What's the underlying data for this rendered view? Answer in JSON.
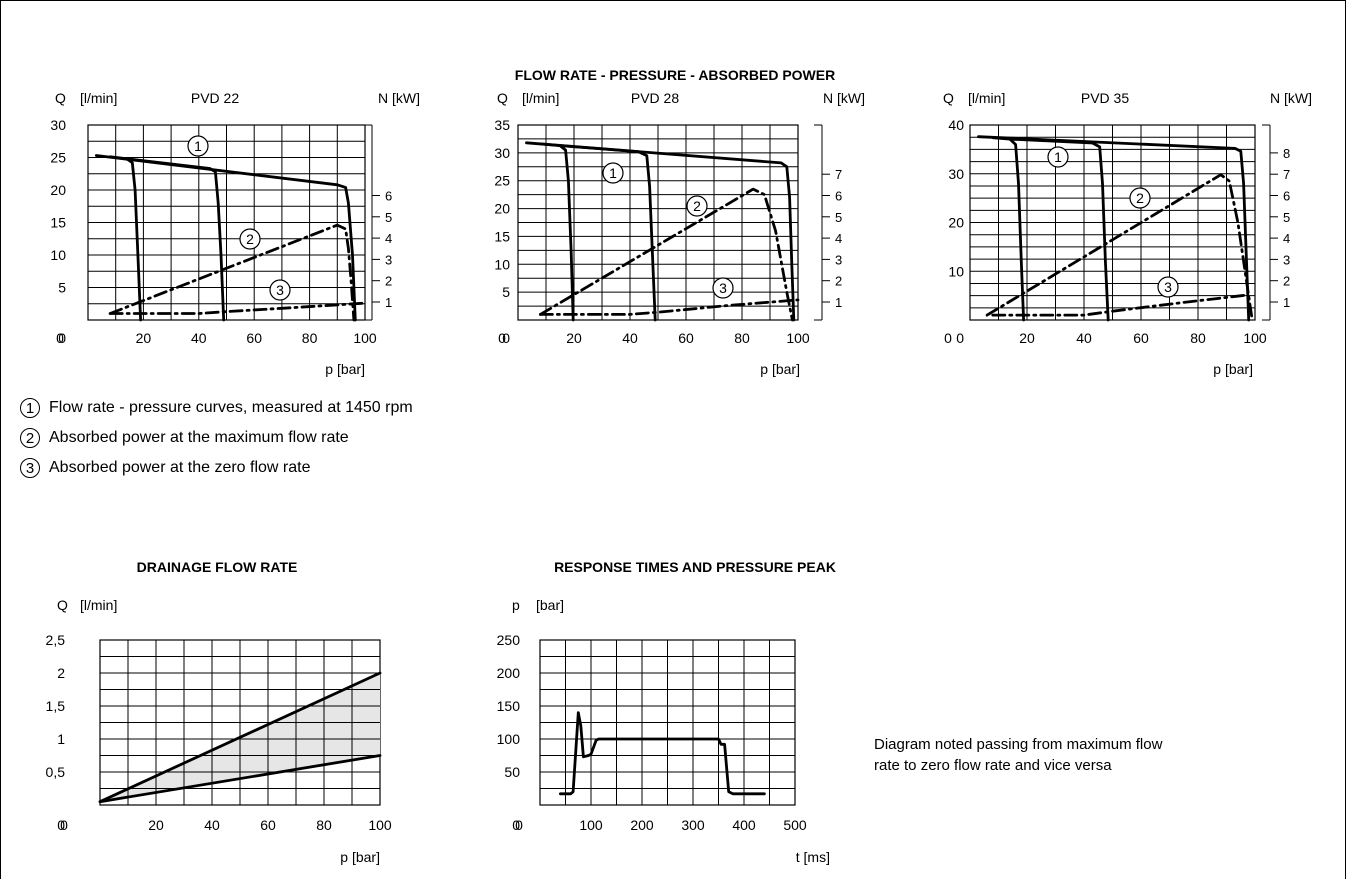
{
  "page_title": "FLOW RATE - PRESSURE - ABSORBED POWER",
  "legend": [
    {
      "marker": "1",
      "text": "Flow rate - pressure curves, measured at 1450 rpm"
    },
    {
      "marker": "2",
      "text": "Absorbed power at the maximum flow rate"
    },
    {
      "marker": "3",
      "text": "Absorbed power at the zero flow rate"
    }
  ],
  "note": "Diagram noted passing from maximum flow rate to zero flow rate and vice versa",
  "chart_data": [
    {
      "type": "line",
      "title": "PVD 22",
      "ylabel_left": "Q",
      "ylabel_left_unit": "[l/min]",
      "ylabel_right": "N [kW]",
      "xlabel": "p [bar]",
      "xlim": [
        0,
        100
      ],
      "ylim": [
        0,
        30
      ],
      "x_ticks": [
        "0",
        "20",
        "40",
        "60",
        "80",
        "100"
      ],
      "y_ticks": [
        "0",
        "5",
        "10",
        "15",
        "20",
        "25",
        "30"
      ],
      "right_axis_ticks": [
        1,
        2,
        3,
        4,
        5,
        6
      ],
      "grid": true,
      "series": [
        {
          "marker": "1",
          "style": "solid",
          "points": [
            [
              3,
              25.3
            ],
            [
              90,
              20.8
            ],
            [
              93,
              20.4
            ],
            [
              94,
              18
            ],
            [
              95.5,
              10
            ],
            [
              96.5,
              0
            ]
          ]
        },
        {
          "marker": "1",
          "style": "solid",
          "points": [
            [
              8,
              25.1
            ],
            [
              14,
              24.8
            ],
            [
              16,
              24.2
            ],
            [
              17,
              20
            ],
            [
              18,
              10
            ],
            [
              19,
              0
            ]
          ]
        },
        {
          "marker": "1",
          "style": "solid",
          "points": [
            [
              14,
              24.8
            ],
            [
              44,
              23.3
            ],
            [
              46,
              22.8
            ],
            [
              47,
              18
            ],
            [
              48,
              10
            ],
            [
              49,
              0
            ]
          ]
        },
        {
          "marker": "2",
          "style": "dashdot",
          "points": [
            [
              8,
              1
            ],
            [
              90,
              14.6
            ],
            [
              93,
              14
            ],
            [
              94,
              11
            ],
            [
              95,
              6
            ],
            [
              96,
              0
            ]
          ]
        },
        {
          "marker": "3",
          "style": "dashdot",
          "points": [
            [
              8,
              1
            ],
            [
              40,
              1
            ],
            [
              50,
              1.3
            ],
            [
              70,
              1.8
            ],
            [
              100,
              2.6
            ]
          ]
        }
      ],
      "annotations": [
        "1",
        "2",
        "3"
      ]
    },
    {
      "type": "line",
      "title": "PVD 28",
      "ylabel_left": "Q",
      "ylabel_left_unit": "[l/min]",
      "ylabel_right": "N [kW]",
      "xlabel": "p [bar]",
      "xlim": [
        0,
        100
      ],
      "ylim": [
        0,
        35
      ],
      "x_ticks": [
        "0",
        "20",
        "40",
        "60",
        "80",
        "100"
      ],
      "y_ticks": [
        "0",
        "5",
        "10",
        "15",
        "20",
        "25",
        "30",
        "35"
      ],
      "right_axis_ticks": [
        1,
        2,
        3,
        4,
        5,
        6,
        7
      ],
      "grid": true,
      "series": [
        {
          "marker": "1",
          "style": "solid",
          "points": [
            [
              3,
              31.8
            ],
            [
              94,
              28.2
            ],
            [
              96,
              27.5
            ],
            [
              97,
              22
            ],
            [
              97.8,
              10
            ],
            [
              98.5,
              0
            ]
          ]
        },
        {
          "marker": "1",
          "style": "solid",
          "points": [
            [
              8,
              31.6
            ],
            [
              15,
              31.3
            ],
            [
              17,
              30.5
            ],
            [
              18,
              25
            ],
            [
              19,
              12
            ],
            [
              19.7,
              0
            ]
          ]
        },
        {
          "marker": "1",
          "style": "solid",
          "points": [
            [
              15,
              31.3
            ],
            [
              43,
              30.2
            ],
            [
              46,
              29.5
            ],
            [
              47,
              24
            ],
            [
              48,
              12
            ],
            [
              49,
              0
            ]
          ]
        },
        {
          "marker": "2",
          "style": "dashdot",
          "points": [
            [
              8,
              1
            ],
            [
              84,
              23.5
            ],
            [
              88,
              22.5
            ],
            [
              92,
              16
            ],
            [
              96,
              5
            ],
            [
              98,
              0
            ]
          ]
        },
        {
          "marker": "3",
          "style": "dashdot",
          "points": [
            [
              8,
              1
            ],
            [
              40,
              1
            ],
            [
              50,
              1.4
            ],
            [
              75,
              2.6
            ],
            [
              100,
              3.6
            ]
          ]
        }
      ],
      "annotations": [
        "1",
        "2",
        "3"
      ]
    },
    {
      "type": "line",
      "title": "PVD 35",
      "ylabel_left": "Q",
      "ylabel_left_unit": "[l/min]",
      "ylabel_right": "N [kW]",
      "xlabel": "p [bar]",
      "xlim": [
        0,
        100
      ],
      "ylim": [
        0,
        40
      ],
      "x_ticks": [
        "0",
        "20",
        "40",
        "60",
        "80",
        "100"
      ],
      "y_ticks": [
        "0",
        "10",
        "20",
        "30",
        "40"
      ],
      "right_axis_ticks": [
        1,
        2,
        3,
        4,
        5,
        6,
        7,
        8
      ],
      "grid": true,
      "series": [
        {
          "marker": "1",
          "style": "solid",
          "points": [
            [
              3,
              37.6
            ],
            [
              93,
              35.2
            ],
            [
              95,
              34.6
            ],
            [
              96,
              28
            ],
            [
              97,
              12
            ],
            [
              97.8,
              0
            ]
          ]
        },
        {
          "marker": "1",
          "style": "solid",
          "points": [
            [
              8,
              37.4
            ],
            [
              14,
              37.1
            ],
            [
              16,
              36
            ],
            [
              17,
              28
            ],
            [
              18,
              12
            ],
            [
              18.8,
              0
            ]
          ]
        },
        {
          "marker": "1",
          "style": "solid",
          "points": [
            [
              14,
              37.1
            ],
            [
              43,
              36.3
            ],
            [
              45.5,
              35.5
            ],
            [
              46.5,
              28
            ],
            [
              47.5,
              12
            ],
            [
              48.5,
              0
            ]
          ]
        },
        {
          "marker": "2",
          "style": "dashdot",
          "points": [
            [
              6,
              1
            ],
            [
              88,
              29.8
            ],
            [
              91,
              28.5
            ],
            [
              94,
              20
            ],
            [
              97,
              8
            ],
            [
              99,
              0
            ]
          ]
        },
        {
          "marker": "3",
          "style": "dashdot",
          "points": [
            [
              8,
              1
            ],
            [
              40,
              1
            ],
            [
              50,
              1.8
            ],
            [
              75,
              3.6
            ],
            [
              97,
              5.1
            ]
          ]
        }
      ],
      "annotations": [
        "1",
        "2",
        "3"
      ]
    },
    {
      "type": "area",
      "title": "DRAINAGE FLOW RATE",
      "ylabel": "Q",
      "ylabel_unit": "[l/min]",
      "xlabel": "p [bar]",
      "xlim": [
        0,
        100
      ],
      "ylim": [
        0,
        2.5
      ],
      "x_ticks": [
        "0",
        "20",
        "40",
        "60",
        "80",
        "100"
      ],
      "y_ticks": [
        "0",
        "0,5",
        "1",
        "1,5",
        "2",
        "2,5"
      ],
      "grid": true,
      "series": [
        {
          "points": [
            [
              0,
              0.05
            ],
            [
              100,
              2.0
            ]
          ]
        },
        {
          "points": [
            [
              0,
              0.05
            ],
            [
              100,
              0.75
            ]
          ]
        }
      ],
      "fill_between": true
    },
    {
      "type": "line",
      "title": "RESPONSE TIMES AND PRESSURE PEAK",
      "ylabel": "p",
      "ylabel_unit": "[bar]",
      "xlabel": "t [ms]",
      "xlim": [
        0,
        500
      ],
      "ylim": [
        0,
        250
      ],
      "x_ticks": [
        "0",
        "100",
        "200",
        "300",
        "400",
        "500"
      ],
      "y_ticks": [
        "0",
        "50",
        "100",
        "150",
        "200",
        "250"
      ],
      "grid": true,
      "series": [
        {
          "points": [
            [
              40,
              17
            ],
            [
              60,
              17
            ],
            [
              65,
              20
            ],
            [
              75,
              140
            ],
            [
              80,
              120
            ],
            [
              85,
              73
            ],
            [
              95,
              75
            ],
            [
              100,
              77
            ],
            [
              110,
              98
            ],
            [
              115,
              100
            ],
            [
              350,
              100
            ],
            [
              355,
              92
            ],
            [
              362,
              92
            ],
            [
              370,
              20
            ],
            [
              378,
              17
            ],
            [
              440,
              17
            ]
          ]
        }
      ]
    }
  ]
}
